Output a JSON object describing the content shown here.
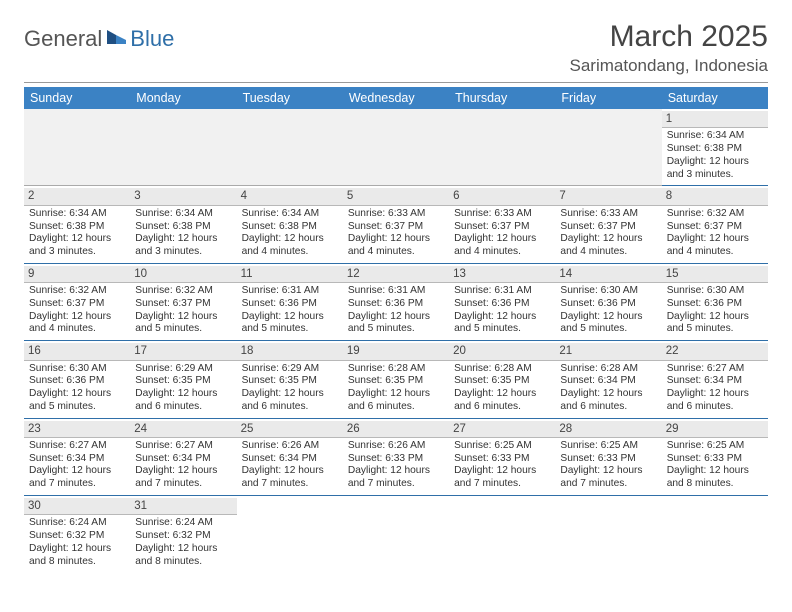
{
  "logo": {
    "text1": "General",
    "text2": "Blue"
  },
  "title": "March 2025",
  "location": "Sarimatondang, Indonesia",
  "colors": {
    "header_bg": "#3b82c4",
    "header_text": "#ffffff",
    "row_divider": "#2f6fa8",
    "blank_bg": "#f1f1f1",
    "daynum_bg": "#eaeaea",
    "logo_accent": "#2f6fa8"
  },
  "day_headers": [
    "Sunday",
    "Monday",
    "Tuesday",
    "Wednesday",
    "Thursday",
    "Friday",
    "Saturday"
  ],
  "weeks": [
    [
      null,
      null,
      null,
      null,
      null,
      null,
      {
        "n": "1",
        "sunrise": "Sunrise: 6:34 AM",
        "sunset": "Sunset: 6:38 PM",
        "daylight": "Daylight: 12 hours and 3 minutes."
      }
    ],
    [
      {
        "n": "2",
        "sunrise": "Sunrise: 6:34 AM",
        "sunset": "Sunset: 6:38 PM",
        "daylight": "Daylight: 12 hours and 3 minutes."
      },
      {
        "n": "3",
        "sunrise": "Sunrise: 6:34 AM",
        "sunset": "Sunset: 6:38 PM",
        "daylight": "Daylight: 12 hours and 3 minutes."
      },
      {
        "n": "4",
        "sunrise": "Sunrise: 6:34 AM",
        "sunset": "Sunset: 6:38 PM",
        "daylight": "Daylight: 12 hours and 4 minutes."
      },
      {
        "n": "5",
        "sunrise": "Sunrise: 6:33 AM",
        "sunset": "Sunset: 6:37 PM",
        "daylight": "Daylight: 12 hours and 4 minutes."
      },
      {
        "n": "6",
        "sunrise": "Sunrise: 6:33 AM",
        "sunset": "Sunset: 6:37 PM",
        "daylight": "Daylight: 12 hours and 4 minutes."
      },
      {
        "n": "7",
        "sunrise": "Sunrise: 6:33 AM",
        "sunset": "Sunset: 6:37 PM",
        "daylight": "Daylight: 12 hours and 4 minutes."
      },
      {
        "n": "8",
        "sunrise": "Sunrise: 6:32 AM",
        "sunset": "Sunset: 6:37 PM",
        "daylight": "Daylight: 12 hours and 4 minutes."
      }
    ],
    [
      {
        "n": "9",
        "sunrise": "Sunrise: 6:32 AM",
        "sunset": "Sunset: 6:37 PM",
        "daylight": "Daylight: 12 hours and 4 minutes."
      },
      {
        "n": "10",
        "sunrise": "Sunrise: 6:32 AM",
        "sunset": "Sunset: 6:37 PM",
        "daylight": "Daylight: 12 hours and 5 minutes."
      },
      {
        "n": "11",
        "sunrise": "Sunrise: 6:31 AM",
        "sunset": "Sunset: 6:36 PM",
        "daylight": "Daylight: 12 hours and 5 minutes."
      },
      {
        "n": "12",
        "sunrise": "Sunrise: 6:31 AM",
        "sunset": "Sunset: 6:36 PM",
        "daylight": "Daylight: 12 hours and 5 minutes."
      },
      {
        "n": "13",
        "sunrise": "Sunrise: 6:31 AM",
        "sunset": "Sunset: 6:36 PM",
        "daylight": "Daylight: 12 hours and 5 minutes."
      },
      {
        "n": "14",
        "sunrise": "Sunrise: 6:30 AM",
        "sunset": "Sunset: 6:36 PM",
        "daylight": "Daylight: 12 hours and 5 minutes."
      },
      {
        "n": "15",
        "sunrise": "Sunrise: 6:30 AM",
        "sunset": "Sunset: 6:36 PM",
        "daylight": "Daylight: 12 hours and 5 minutes."
      }
    ],
    [
      {
        "n": "16",
        "sunrise": "Sunrise: 6:30 AM",
        "sunset": "Sunset: 6:36 PM",
        "daylight": "Daylight: 12 hours and 5 minutes."
      },
      {
        "n": "17",
        "sunrise": "Sunrise: 6:29 AM",
        "sunset": "Sunset: 6:35 PM",
        "daylight": "Daylight: 12 hours and 6 minutes."
      },
      {
        "n": "18",
        "sunrise": "Sunrise: 6:29 AM",
        "sunset": "Sunset: 6:35 PM",
        "daylight": "Daylight: 12 hours and 6 minutes."
      },
      {
        "n": "19",
        "sunrise": "Sunrise: 6:28 AM",
        "sunset": "Sunset: 6:35 PM",
        "daylight": "Daylight: 12 hours and 6 minutes."
      },
      {
        "n": "20",
        "sunrise": "Sunrise: 6:28 AM",
        "sunset": "Sunset: 6:35 PM",
        "daylight": "Daylight: 12 hours and 6 minutes."
      },
      {
        "n": "21",
        "sunrise": "Sunrise: 6:28 AM",
        "sunset": "Sunset: 6:34 PM",
        "daylight": "Daylight: 12 hours and 6 minutes."
      },
      {
        "n": "22",
        "sunrise": "Sunrise: 6:27 AM",
        "sunset": "Sunset: 6:34 PM",
        "daylight": "Daylight: 12 hours and 6 minutes."
      }
    ],
    [
      {
        "n": "23",
        "sunrise": "Sunrise: 6:27 AM",
        "sunset": "Sunset: 6:34 PM",
        "daylight": "Daylight: 12 hours and 7 minutes."
      },
      {
        "n": "24",
        "sunrise": "Sunrise: 6:27 AM",
        "sunset": "Sunset: 6:34 PM",
        "daylight": "Daylight: 12 hours and 7 minutes."
      },
      {
        "n": "25",
        "sunrise": "Sunrise: 6:26 AM",
        "sunset": "Sunset: 6:34 PM",
        "daylight": "Daylight: 12 hours and 7 minutes."
      },
      {
        "n": "26",
        "sunrise": "Sunrise: 6:26 AM",
        "sunset": "Sunset: 6:33 PM",
        "daylight": "Daylight: 12 hours and 7 minutes."
      },
      {
        "n": "27",
        "sunrise": "Sunrise: 6:25 AM",
        "sunset": "Sunset: 6:33 PM",
        "daylight": "Daylight: 12 hours and 7 minutes."
      },
      {
        "n": "28",
        "sunrise": "Sunrise: 6:25 AM",
        "sunset": "Sunset: 6:33 PM",
        "daylight": "Daylight: 12 hours and 7 minutes."
      },
      {
        "n": "29",
        "sunrise": "Sunrise: 6:25 AM",
        "sunset": "Sunset: 6:33 PM",
        "daylight": "Daylight: 12 hours and 8 minutes."
      }
    ],
    [
      {
        "n": "30",
        "sunrise": "Sunrise: 6:24 AM",
        "sunset": "Sunset: 6:32 PM",
        "daylight": "Daylight: 12 hours and 8 minutes."
      },
      {
        "n": "31",
        "sunrise": "Sunrise: 6:24 AM",
        "sunset": "Sunset: 6:32 PM",
        "daylight": "Daylight: 12 hours and 8 minutes."
      },
      null,
      null,
      null,
      null,
      null
    ]
  ]
}
